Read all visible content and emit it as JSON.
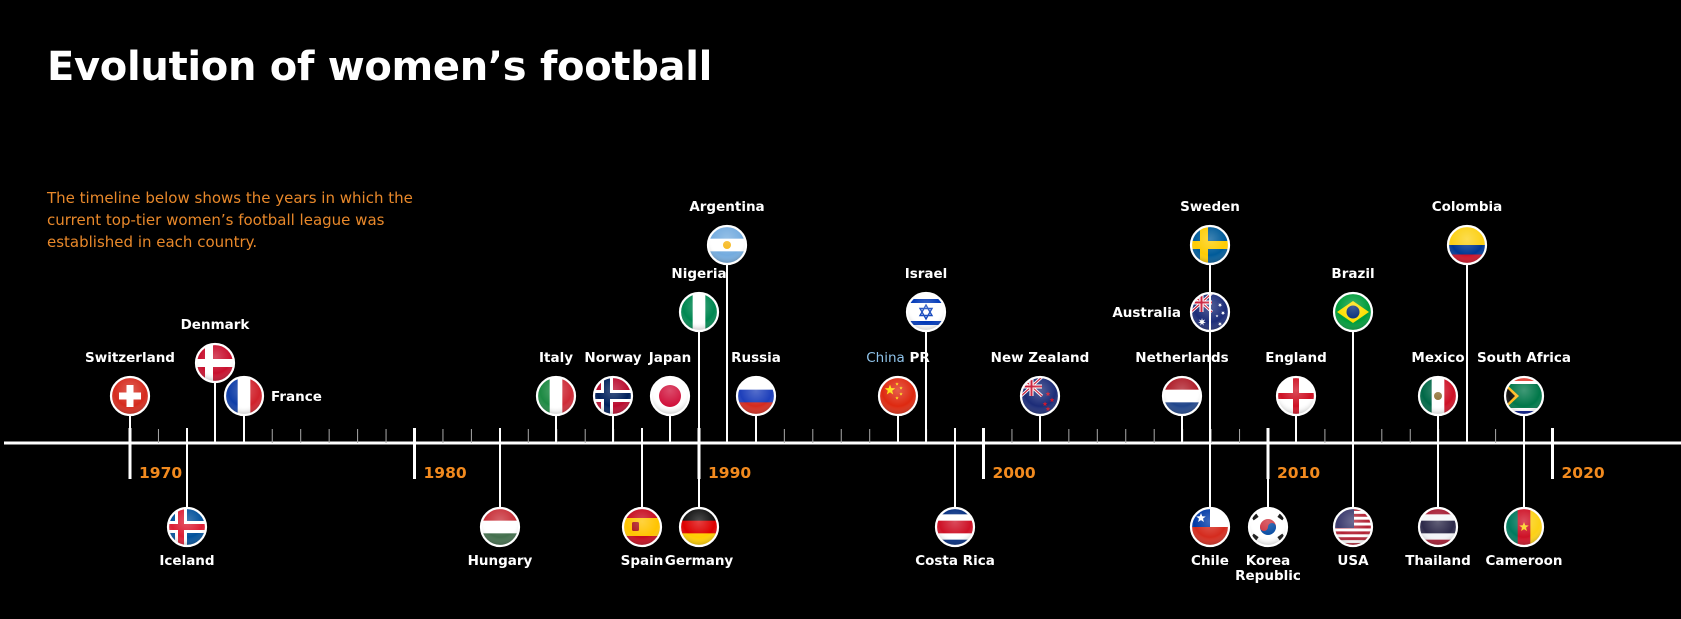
{
  "title": "Evolution of women’s football",
  "intro": "The timeline below shows the years in which the current top-tier women’s football league was established in each country.",
  "colors": {
    "background": "#000000",
    "text": "#ffffff",
    "accent": "#f28a1e",
    "intro": "#e8882a",
    "china_highlight": "#8fc3ea"
  },
  "decade_labels": [
    "1970",
    "1980",
    "1990",
    "2000",
    "2010",
    "2020"
  ],
  "countries": [
    {
      "name": "Switzerland",
      "flag": "switzerland-flag",
      "side": "top",
      "level": 2
    },
    {
      "name": "Denmark",
      "flag": "denmark-flag",
      "side": "top",
      "level": 3
    },
    {
      "name": "France",
      "flag": "france-flag",
      "side": "top",
      "level": 1
    },
    {
      "name": "Iceland",
      "flag": "iceland-flag",
      "side": "bottom",
      "level": 1
    },
    {
      "name": "Hungary",
      "flag": "hungary-flag",
      "side": "bottom",
      "level": 1
    },
    {
      "name": "Italy",
      "flag": "italy-flag",
      "side": "top",
      "level": 2
    },
    {
      "name": "Norway",
      "flag": "norway-flag",
      "side": "top",
      "level": 2
    },
    {
      "name": "Spain",
      "flag": "spain-flag",
      "side": "bottom",
      "level": 1
    },
    {
      "name": "Japan",
      "flag": "japan-flag",
      "side": "top",
      "level": 2
    },
    {
      "name": "Nigeria",
      "flag": "nigeria-flag",
      "side": "top",
      "level": 4
    },
    {
      "name": "Germany",
      "flag": "germany-flag",
      "side": "bottom",
      "level": 1
    },
    {
      "name": "Argentina",
      "flag": "argentina-flag",
      "side": "top",
      "level": 5
    },
    {
      "name": "Russia",
      "flag": "russia-flag",
      "side": "top",
      "level": 2
    },
    {
      "name": "China PR",
      "name_highlight": "China",
      "name_rest": " PR",
      "flag": "china-flag",
      "side": "top",
      "level": 2
    },
    {
      "name": "Israel",
      "flag": "israel-flag",
      "side": "top",
      "level": 4
    },
    {
      "name": "Costa Rica",
      "flag": "costa-rica-flag",
      "side": "bottom",
      "level": 1
    },
    {
      "name": "New Zealand",
      "flag": "new-zealand-flag",
      "side": "top",
      "level": 2
    },
    {
      "name": "Netherlands",
      "flag": "netherlands-flag",
      "side": "top",
      "level": 2
    },
    {
      "name": "Australia",
      "flag": "australia-flag",
      "side": "top",
      "level": 4
    },
    {
      "name": "Sweden",
      "flag": "sweden-flag",
      "side": "top",
      "level": 5
    },
    {
      "name": "Chile",
      "flag": "chile-flag",
      "side": "bottom",
      "level": 1
    },
    {
      "name": "Korea Republic",
      "name_lines": [
        "Korea",
        "Republic"
      ],
      "flag": "korea-flag",
      "side": "bottom",
      "level": 1
    },
    {
      "name": "England",
      "flag": "england-flag",
      "side": "top",
      "level": 2
    },
    {
      "name": "Brazil",
      "flag": "brazil-flag",
      "side": "top",
      "level": 4
    },
    {
      "name": "USA",
      "flag": "usa-flag",
      "side": "bottom",
      "level": 1
    },
    {
      "name": "Mexico",
      "flag": "mexico-flag",
      "side": "top",
      "level": 2
    },
    {
      "name": "Thailand",
      "flag": "thailand-flag",
      "side": "bottom",
      "level": 1
    },
    {
      "name": "Colombia",
      "flag": "colombia-flag",
      "side": "top",
      "level": 5
    },
    {
      "name": "South Africa",
      "flag": "south-africa-flag",
      "side": "top",
      "level": 2
    },
    {
      "name": "Cameroon",
      "flag": "cameroon-flag",
      "side": "bottom",
      "level": 1
    }
  ]
}
